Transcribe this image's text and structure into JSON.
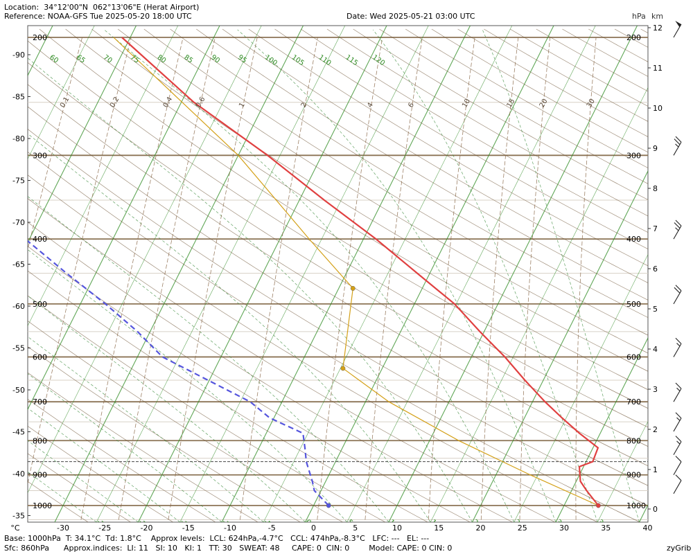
{
  "header": {
    "location": "Location:  34°12'00\"N  062°13'06\"E (Herat Airport)",
    "reference": "Reference: NOAA-GFS Tue 2025-05-20 18:00 UTC",
    "date": "Date: Wed 2025-05-21 03:00 UTC",
    "hpa_label": "hPa",
    "km_label": "km"
  },
  "footer": {
    "line1": "Base: 1000hPa  T: 34.1°C  Td: 1.8°C    Approx levels:  LCL: 624hPa,-4.7°C   CCL: 474hPa,-8.3°C   LFC: ---   EL: ---",
    "line2": "Sfc: 860hPa      Approx.indices:  LI: 11   SI: 10   KI: 1   TT: 30   SWEAT: 48     CAPE: 0  CIN: 0        Model: CAPE: 0 CIN: 0",
    "brand": "zyGrib"
  },
  "chart_data": {
    "type": "line",
    "title": "",
    "x_unit_label": "°C",
    "xlim": [
      -35,
      40
    ],
    "x_ticks": [
      -30,
      -25,
      -20,
      -15,
      -10,
      -5,
      0,
      5,
      10,
      15,
      20,
      25,
      30,
      35,
      40
    ],
    "left_ticks": [
      -90,
      -85,
      -80,
      -75,
      -70,
      -65,
      -60,
      -55,
      -50,
      -45,
      -40,
      -35
    ],
    "pressure_levels": [
      200,
      300,
      400,
      500,
      600,
      700,
      800,
      900,
      1000
    ],
    "km_ticks": [
      0,
      1,
      2,
      3,
      4,
      5,
      6,
      7,
      8,
      9,
      10,
      11,
      12
    ],
    "surface_pressure": 860,
    "series": [
      {
        "role": "temperature",
        "color": "#e04040",
        "points": [
          [
            1000,
            34.1
          ],
          [
            950,
            31.8
          ],
          [
            920,
            30.5
          ],
          [
            875,
            29.5
          ],
          [
            860,
            30.8
          ],
          [
            820,
            30.6
          ],
          [
            780,
            27.5
          ],
          [
            740,
            24.5
          ],
          [
            700,
            21.5
          ],
          [
            650,
            17.8
          ],
          [
            600,
            14.0
          ],
          [
            550,
            9.5
          ],
          [
            500,
            4.8
          ],
          [
            450,
            -1.5
          ],
          [
            400,
            -8.5
          ],
          [
            350,
            -17.0
          ],
          [
            300,
            -26.5
          ],
          [
            250,
            -38.5
          ],
          [
            200,
            -51.0
          ]
        ]
      },
      {
        "role": "dewpoint",
        "color": "#5555dd",
        "points": [
          [
            1000,
            1.8
          ],
          [
            950,
            -0.8
          ],
          [
            920,
            -1.6
          ],
          [
            860,
            -3.5
          ],
          [
            820,
            -4.5
          ],
          [
            780,
            -5.6
          ],
          [
            740,
            -10.5
          ],
          [
            700,
            -13.8
          ],
          [
            600,
            -27.0
          ],
          [
            550,
            -31.5
          ],
          [
            500,
            -37.0
          ],
          [
            450,
            -43.5
          ],
          [
            400,
            -50.5
          ],
          [
            350,
            -59.0
          ],
          [
            300,
            -67.5
          ],
          [
            250,
            -79.5
          ],
          [
            200,
            -93.0
          ]
        ]
      },
      {
        "role": "parcel",
        "color": "#d4a017",
        "points": [
          [
            1000,
            34.1
          ],
          [
            900,
            24.1
          ],
          [
            800,
            13.5
          ],
          [
            700,
            2.8
          ],
          [
            624,
            -4.7
          ],
          [
            474,
            -8.3
          ],
          [
            400,
            -16.5
          ],
          [
            300,
            -30.0
          ],
          [
            200,
            -52.0
          ]
        ]
      }
    ],
    "markers": [
      {
        "label_role": "surface_temp",
        "p": 1000,
        "t": 34.1,
        "color": "#e04040"
      },
      {
        "label_role": "surface_dew",
        "p": 1000,
        "t": 1.8,
        "color": "#5555dd"
      },
      {
        "label_role": "LCL",
        "p": 624,
        "t": -4.7,
        "color": "#d4a017"
      },
      {
        "label_role": "CCL",
        "p": 474,
        "t": -8.3,
        "color": "#d4a017"
      }
    ],
    "dry_adiabat_labels": [
      15,
      20,
      25,
      30,
      35,
      40,
      45,
      50,
      55,
      60,
      65,
      70,
      75,
      80,
      85,
      90,
      95,
      100,
      105,
      110,
      115,
      120
    ],
    "moist_adiabat_labels": [
      -25,
      -20,
      -15,
      -10,
      -5,
      0,
      5,
      10,
      15,
      20,
      25,
      30,
      35
    ],
    "mixing_ratio_labels": [
      0.1,
      0.2,
      0.4,
      0.6,
      1,
      2,
      4,
      6,
      10,
      15,
      20,
      30
    ],
    "wind_barbs": [
      {
        "p": 200,
        "speed": 50
      },
      {
        "p": 300,
        "speed": 25
      },
      {
        "p": 400,
        "speed": 25
      },
      {
        "p": 500,
        "speed": 20
      },
      {
        "p": 600,
        "speed": 15
      },
      {
        "p": 700,
        "speed": 15
      },
      {
        "p": 775,
        "speed": 15
      },
      {
        "p": 840,
        "speed": 15
      },
      {
        "p": 900,
        "speed": 10
      },
      {
        "p": 960,
        "speed": 10
      }
    ],
    "colors": {
      "isobar": "#8b7355",
      "isotherm": "#2e8b22",
      "dry_adiabat": "#6b5030",
      "moist_adiabat": "#3a8a3a",
      "mixing_ratio": "#8b6a4a"
    }
  }
}
